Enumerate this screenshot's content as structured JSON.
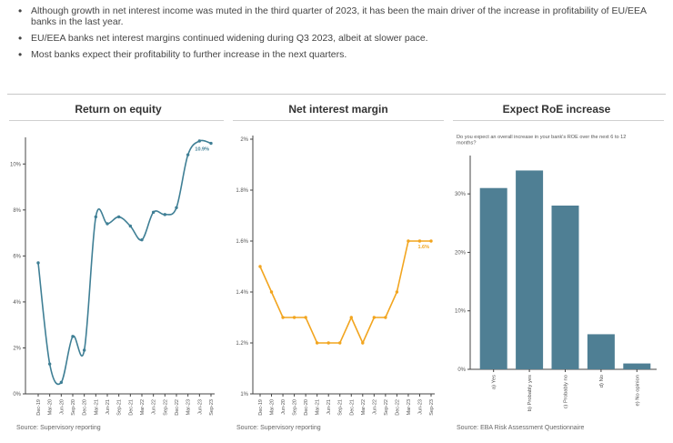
{
  "bullets": [
    "Although growth in net interest income was muted in the third quarter of 2023, it has been the main driver of the increase in profitability of EU/EEA banks in the last year.",
    "EU/EEA banks net interest margins continued widening during Q3 2023, albeit at slower pace.",
    "Most banks expect their profitability to further increase in the next quarters."
  ],
  "colors": {
    "roe": "#3f7f95",
    "nim": "#f2a51f",
    "bar": "#4f7f94"
  },
  "chart_data": [
    {
      "type": "line",
      "title": "Return on equity",
      "x": [
        "Dec-19",
        "Mar-20",
        "Jun-20",
        "Sep-20",
        "Dec-20",
        "Mar-21",
        "Jun-21",
        "Sep-21",
        "Dec-21",
        "Mar-22",
        "Jun-22",
        "Sep-22",
        "Dec-22",
        "Mar-23",
        "Jun-23",
        "Sep-23"
      ],
      "series": [
        {
          "values": [
            5.7,
            1.3,
            0.5,
            2.5,
            1.9,
            7.7,
            7.4,
            7.7,
            7.3,
            6.7,
            7.9,
            7.8,
            8.1,
            10.4,
            11.0,
            10.9
          ]
        }
      ],
      "ylim": [
        0,
        11
      ],
      "yticks": [
        "0%",
        "2%",
        "4%",
        "6%",
        "8%",
        "10%"
      ],
      "last_label": "10.9%",
      "source": "Source: Supervisory reporting"
    },
    {
      "type": "line",
      "title": "Net interest margin",
      "x": [
        "Dec-19",
        "Mar-20",
        "Jun-20",
        "Sep-20",
        "Dec-20",
        "Mar-21",
        "Jun-21",
        "Sep-21",
        "Dec-21",
        "Mar-22",
        "Jun-22",
        "Sep-22",
        "Dec-22",
        "Mar-23",
        "Jun-23",
        "Sep-23"
      ],
      "series": [
        {
          "values": [
            1.5,
            1.4,
            1.3,
            1.3,
            1.3,
            1.2,
            1.2,
            1.2,
            1.3,
            1.2,
            1.3,
            1.3,
            1.4,
            1.6,
            1.6,
            1.6
          ]
        }
      ],
      "ylim": [
        1,
        2
      ],
      "yticks": [
        "1%",
        "1.2%",
        "1.4%",
        "1.6%",
        "1.8%",
        "2%"
      ],
      "last_label": "1.6%",
      "source": "Source: Supervisory reporting"
    },
    {
      "type": "bar",
      "title": "Expect RoE increase",
      "subtitle": "Do you expect an overall increase in your bank's ROE over the next 6 to 12 months?",
      "categories": [
        "a) Yes",
        "b) Probably yes",
        "c) Probably no",
        "d) No",
        "e) No opinion"
      ],
      "values": [
        31,
        34,
        28,
        6,
        1
      ],
      "ylim": [
        0,
        35
      ],
      "yticks": [
        "0%",
        "10%",
        "20%",
        "30%"
      ],
      "source": "Source: EBA Risk Assessment Questionnaire"
    }
  ]
}
